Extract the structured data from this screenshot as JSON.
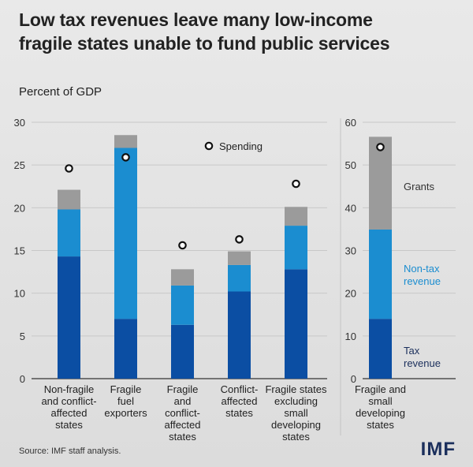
{
  "title": "Low tax revenues leave many low-income fragile states unable to fund public services",
  "title_lines": [
    "Low tax revenues leave many low-income",
    "fragile states unable to fund public services"
  ],
  "source": "Source: IMF staff analysis.",
  "logo": "IMF",
  "colors": {
    "tax": "#0b4ea3",
    "nontax": "#1b8dd0",
    "grants": "#9b9b9b",
    "spending": "#ffffff"
  },
  "chart_data": [
    {
      "type": "bar",
      "stacked": true,
      "ylabel": "Percent of GDP",
      "ylim": [
        0,
        30
      ],
      "yticks": [
        0,
        5,
        10,
        15,
        20,
        25,
        30
      ],
      "grid": true,
      "categories": [
        [
          "Non-fragile",
          "and conflict-",
          "affected",
          "states"
        ],
        [
          "Fragile",
          "fuel",
          "exporters"
        ],
        [
          "Fragile",
          "and",
          "conflict-",
          "affected",
          "states"
        ],
        [
          "Conflict-",
          "affected",
          "states"
        ],
        [
          "Fragile states",
          "excluding",
          "small",
          "developing",
          "states"
        ]
      ],
      "series": [
        {
          "name": "Tax revenue",
          "values": [
            14.3,
            7.0,
            6.3,
            10.2,
            12.8
          ]
        },
        {
          "name": "Non-tax revenue",
          "values": [
            5.5,
            20.0,
            4.6,
            3.1,
            5.1
          ]
        },
        {
          "name": "Grants",
          "values": [
            2.3,
            1.5,
            1.9,
            1.6,
            2.2
          ]
        }
      ],
      "markers": {
        "name": "Spending",
        "values": [
          24.6,
          25.9,
          15.6,
          16.3,
          22.8
        ]
      },
      "legend": "top-center"
    },
    {
      "type": "bar",
      "stacked": true,
      "ylim": [
        0,
        60
      ],
      "yticks": [
        0,
        10,
        20,
        30,
        40,
        50,
        60
      ],
      "grid": true,
      "categories": [
        [
          "Fragile and",
          "small",
          "developing",
          "states"
        ]
      ],
      "series": [
        {
          "name": "Tax revenue",
          "label_lines": [
            "Tax",
            "revenue"
          ],
          "values": [
            14.0
          ]
        },
        {
          "name": "Non-tax revenue",
          "label_lines": [
            "Non-tax",
            "revenue"
          ],
          "values": [
            20.9
          ]
        },
        {
          "name": "Grants",
          "label_lines": [
            "Grants"
          ],
          "values": [
            21.7
          ]
        }
      ],
      "markers": {
        "name": "Spending",
        "values": [
          54.2
        ]
      },
      "legend": "right"
    }
  ]
}
